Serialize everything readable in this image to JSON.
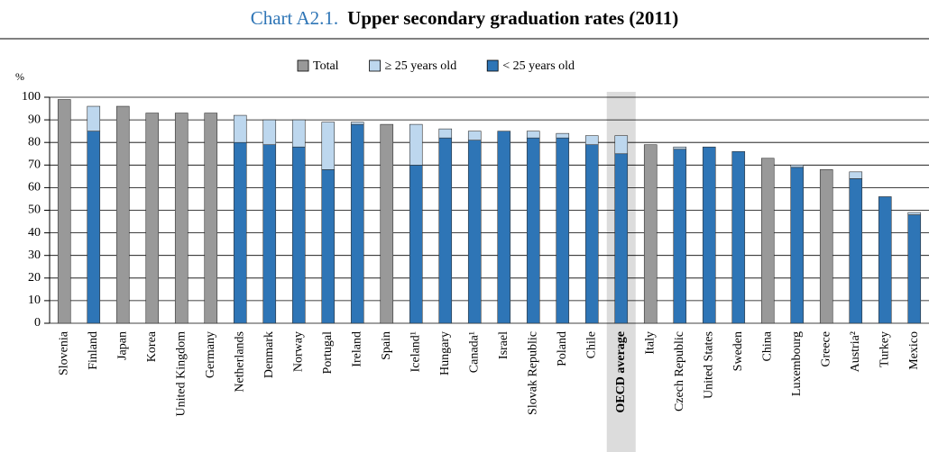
{
  "chart_data": {
    "type": "stacked_bar",
    "title_label": "Chart A2.1.",
    "title": "Upper secondary graduation rates (2011)",
    "y_label": "%",
    "categories": [
      "Slovenia",
      "Finland",
      "Japan",
      "Korea",
      "United Kingdom",
      "Germany",
      "Netherlands",
      "Denmark",
      "Norway",
      "Portugal",
      "Ireland",
      "Spain",
      "Iceland¹",
      "Hungary",
      "Canada¹",
      "Israel",
      "Slovak Republic",
      "Poland",
      "Chile",
      "OECD average",
      "Italy",
      "Czech Republic",
      "United States",
      "Sweden",
      "China",
      "Luxembourg",
      "Greece",
      "Austria²",
      "Turkey",
      "Mexico"
    ],
    "series": [
      {
        "name": "Total",
        "color": "#999999",
        "stack": false,
        "values": [
          99,
          null,
          96,
          93,
          93,
          93,
          null,
          null,
          null,
          null,
          null,
          88,
          null,
          null,
          null,
          null,
          null,
          null,
          null,
          null,
          79,
          null,
          null,
          null,
          73,
          null,
          68,
          null,
          null,
          null
        ]
      },
      {
        "name": "< 25 years old",
        "color": "#2e75b6",
        "stack": true,
        "values": [
          null,
          85,
          null,
          null,
          null,
          null,
          80,
          79,
          78,
          68,
          88,
          null,
          70,
          82,
          81,
          85,
          82,
          82,
          79,
          75,
          null,
          77,
          78,
          76,
          null,
          69,
          null,
          64,
          56,
          48
        ]
      },
      {
        "name": "≥ 25 years old",
        "color": "#bdd7ee",
        "stack": true,
        "values": [
          null,
          11,
          null,
          null,
          null,
          null,
          12,
          11,
          12,
          21,
          1,
          null,
          18,
          4,
          4,
          null,
          3,
          2,
          4,
          8,
          null,
          1,
          null,
          null,
          null,
          1,
          null,
          3,
          null,
          1
        ]
      }
    ],
    "legend_order": [
      0,
      2,
      1
    ],
    "highlight": "OECD average",
    "ylim": [
      0,
      100
    ],
    "yticks": [
      0,
      10,
      20,
      30,
      40,
      50,
      60,
      70,
      80,
      90,
      100
    ],
    "grid": true
  }
}
